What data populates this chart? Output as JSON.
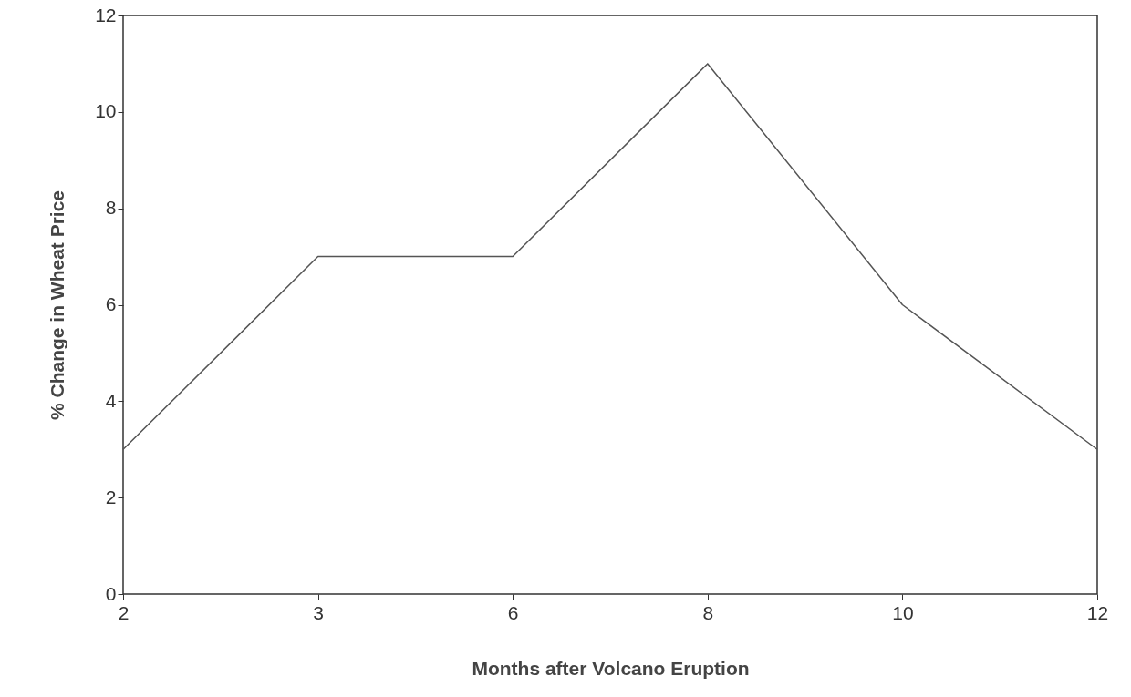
{
  "chart_data": {
    "type": "line",
    "xlabel": "Months after Volcano Eruption",
    "ylabel": "% Change in Wheat Price",
    "categories": [
      "2",
      "3",
      "6",
      "8",
      "10",
      "12"
    ],
    "series": [
      {
        "color": "#555555",
        "values": [
          3,
          7,
          7,
          11,
          6,
          3
        ]
      }
    ],
    "ylim": [
      0,
      12
    ],
    "yticks": [
      0,
      2,
      4,
      6,
      8,
      10,
      12
    ],
    "grid": false,
    "marker": "none",
    "line_style": "solid"
  }
}
